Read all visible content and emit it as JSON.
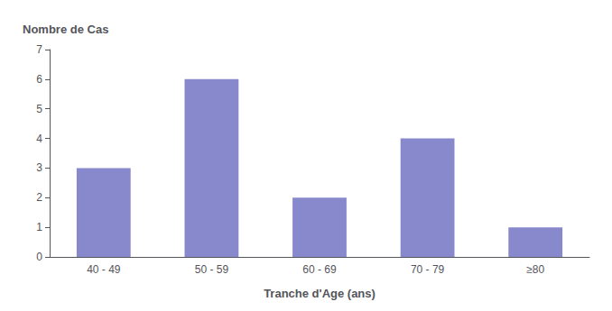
{
  "chart_data": {
    "type": "bar",
    "categories": [
      "40 - 49",
      "50 - 59",
      "60 - 69",
      "70 - 79",
      "≥80"
    ],
    "values": [
      3,
      6,
      2,
      4,
      1
    ],
    "color": "#8888cc",
    "xlabel": "Tranche d'Age (ans)",
    "ylabel": "Nombre de Cas",
    "ylim": [
      0,
      7
    ],
    "yticks": [
      0,
      1,
      2,
      3,
      4,
      5,
      6,
      7
    ],
    "grid": false
  }
}
